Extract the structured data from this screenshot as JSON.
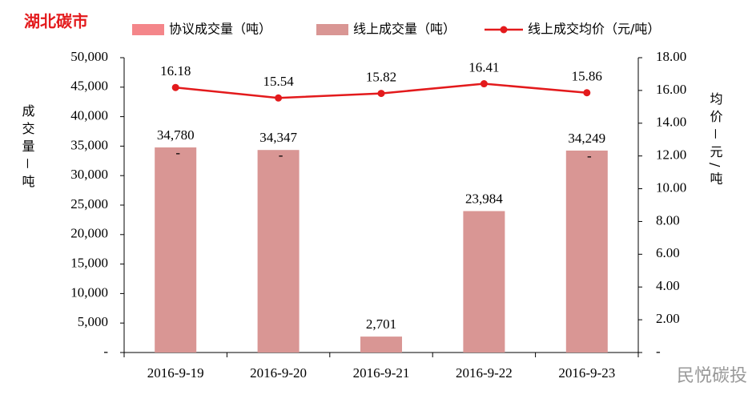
{
  "chart_data": {
    "type": "bar-line",
    "title": "湖北碳市",
    "categories": [
      "2016-9-19",
      "2016-9-20",
      "2016-9-21",
      "2016-9-22",
      "2016-9-23"
    ],
    "series": [
      {
        "name": "协议成交量（吨）",
        "color": "#f4868a",
        "values": [
          0,
          0,
          0,
          0,
          0
        ],
        "value_labels": [
          "-",
          "-",
          null,
          null,
          "-"
        ]
      },
      {
        "name": "线上成交量（吨）",
        "color": "#d99694",
        "values": [
          34780,
          34347,
          2701,
          23984,
          34249
        ],
        "value_labels": [
          "34,780",
          "34,347",
          "2,701",
          "23,984",
          "34,249"
        ]
      },
      {
        "name": "线上成交均价（元/吨）",
        "color": "#e31a1c",
        "axis": "y2",
        "values": [
          16.18,
          15.54,
          15.82,
          16.41,
          15.86
        ]
      }
    ],
    "ylabel": "成交量－吨",
    "y2label": "均价－元/吨",
    "ylim": [
      0,
      50000
    ],
    "yticks": [
      {
        "value": 0,
        "label": "-"
      },
      {
        "value": 5000,
        "label": "5,000"
      },
      {
        "value": 10000,
        "label": "10,000"
      },
      {
        "value": 15000,
        "label": "15,000"
      },
      {
        "value": 20000,
        "label": "20,000"
      },
      {
        "value": 25000,
        "label": "25,000"
      },
      {
        "value": 30000,
        "label": "30,000"
      },
      {
        "value": 35000,
        "label": "35,000"
      },
      {
        "value": 40000,
        "label": "40,000"
      },
      {
        "value": 45000,
        "label": "45,000"
      },
      {
        "value": 50000,
        "label": "50,000"
      }
    ],
    "y2lim": [
      0,
      18
    ],
    "y2ticks": [
      {
        "value": 0,
        "label": "-"
      },
      {
        "value": 2,
        "label": "2.00"
      },
      {
        "value": 4,
        "label": "4.00"
      },
      {
        "value": 6,
        "label": "6.00"
      },
      {
        "value": 8,
        "label": "8.00"
      },
      {
        "value": 10,
        "label": "10.00"
      },
      {
        "value": 12,
        "label": "12.00"
      },
      {
        "value": 14,
        "label": "14.00"
      },
      {
        "value": 16,
        "label": "16.00"
      },
      {
        "value": 18,
        "label": "18.00"
      }
    ],
    "grid": false,
    "watermark": "民悦碳投"
  }
}
